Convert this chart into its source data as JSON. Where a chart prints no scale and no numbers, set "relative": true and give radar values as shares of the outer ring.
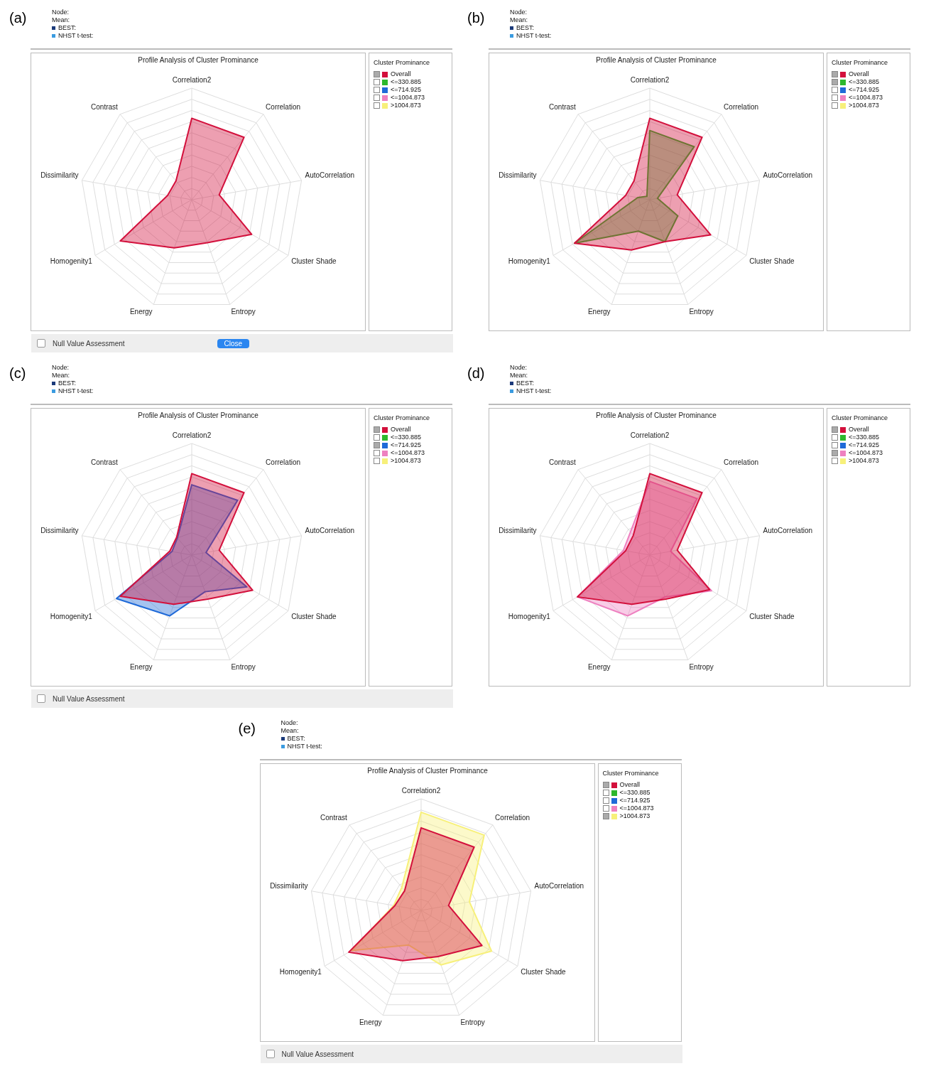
{
  "chart_data": [
    {
      "type": "radar",
      "title": "Profile Analysis of Cluster Prominance",
      "legend_title": "Cluster Prominance",
      "relative": true,
      "grid": true,
      "legend": "top right",
      "marker": "none",
      "annotations": [
        "(a)",
        "Node:",
        "Mean:",
        "BEST:",
        "NHST t-test:",
        "<=330.885",
        "<=714.925",
        "<=1004.873",
        ">1004.873",
        "Null Value Assessment",
        "Close"
      ],
      "categories": [
        "Correlation2",
        "Correlation",
        "AutoCorrelation",
        "Cluster Shade",
        "Entropy",
        "Energy",
        "Homogenity1",
        "Dissimilarity",
        "Contrast"
      ],
      "series": [
        {
          "name": "Overall",
          "color": "#d3103c",
          "values": [
            0.73,
            0.73,
            0.25,
            0.62,
            0.41,
            0.46,
            0.74,
            0.22,
            0.22
          ]
        }
      ]
    },
    {
      "type": "radar",
      "title": "Profile Analysis of Cluster Prominance",
      "legend_title": "Cluster Prominance",
      "relative": true,
      "grid": true,
      "legend": "top right",
      "marker": "none",
      "annotations": [
        "(b)",
        "Node:",
        "Mean:",
        "BEST:",
        "NHST t-test:",
        "<=714.925",
        "<=1004.873",
        ">1004.873"
      ],
      "categories": [
        "Correlation2",
        "Correlation",
        "AutoCorrelation",
        "Cluster Shade",
        "Entropy",
        "Energy",
        "Homogenity1",
        "Dissimilarity",
        "Contrast"
      ],
      "series": [
        {
          "name": "Overall",
          "color": "#d3103c",
          "values": [
            0.73,
            0.73,
            0.25,
            0.63,
            0.4,
            0.48,
            0.78,
            0.22,
            0.22
          ]
        },
        {
          "name": "<=330.885",
          "color": "#2db82d",
          "values": [
            0.62,
            0.62,
            0.07,
            0.29,
            0.4,
            0.3,
            0.78,
            0.11,
            0.04
          ]
        }
      ]
    },
    {
      "type": "radar",
      "title": "Profile Analysis of Cluster Prominance",
      "legend_title": "Cluster Prominance",
      "relative": true,
      "grid": true,
      "legend": "top right",
      "marker": "none",
      "annotations": [
        "(c)",
        "Node:",
        "Mean:",
        "BEST:",
        "NHST t-test:",
        "<=330.885",
        "<=1004.873",
        ">1004.873",
        "Null Value Assessment"
      ],
      "categories": [
        "Correlation2",
        "Correlation",
        "AutoCorrelation",
        "Cluster Shade",
        "Entropy",
        "Energy",
        "Homogenity1",
        "Dissimilarity",
        "Contrast"
      ],
      "series": [
        {
          "name": "Overall",
          "color": "#d3103c",
          "values": [
            0.73,
            0.73,
            0.25,
            0.63,
            0.42,
            0.47,
            0.74,
            0.2,
            0.21
          ]
        },
        {
          "name": "<=714.925",
          "color": "#1f6ad8",
          "values": [
            0.63,
            0.64,
            0.13,
            0.57,
            0.35,
            0.58,
            0.78,
            0.18,
            0.2
          ]
        }
      ]
    },
    {
      "type": "radar",
      "title": "Profile Analysis of Cluster Prominance",
      "legend_title": "Cluster Prominance",
      "relative": true,
      "grid": true,
      "legend": "top right",
      "marker": "none",
      "annotations": [
        "(d)",
        "Node:",
        "Mean:",
        "BEST:",
        "NHST t-test:",
        "<=330.885",
        "<=714.925",
        ">1004.873"
      ],
      "categories": [
        "Correlation2",
        "Correlation",
        "AutoCorrelation",
        "Cluster Shade",
        "Entropy",
        "Energy",
        "Homogenity1",
        "Dissimilarity",
        "Contrast"
      ],
      "series": [
        {
          "name": "Overall",
          "color": "#d3103c",
          "values": [
            0.73,
            0.73,
            0.25,
            0.62,
            0.42,
            0.47,
            0.75,
            0.22,
            0.23
          ]
        },
        {
          "name": "<=1004.873",
          "color": "#ee80c0",
          "values": [
            0.66,
            0.66,
            0.19,
            0.64,
            0.4,
            0.58,
            0.75,
            0.24,
            0.27
          ]
        }
      ]
    },
    {
      "type": "radar",
      "title": "Profile Analysis of Cluster Prominance",
      "legend_title": "Cluster Prominance",
      "relative": true,
      "grid": true,
      "legend": "top right",
      "marker": "none",
      "annotations": [
        "(e)",
        "Node:",
        "Mean:",
        "BEST:",
        "NHST t-test:",
        "<=330.885",
        "<=714.925",
        "<=1004.873",
        "Null Value Assessment"
      ],
      "categories": [
        "Correlation2",
        "Correlation",
        "AutoCorrelation",
        "Cluster Shade",
        "Entropy",
        "Energy",
        "Homogenity1",
        "Dissimilarity",
        "Contrast"
      ],
      "series": [
        {
          "name": "Overall",
          "color": "#d3103c",
          "values": [
            0.74,
            0.74,
            0.25,
            0.63,
            0.44,
            0.48,
            0.75,
            0.24,
            0.23
          ]
        },
        {
          "name": ">1004.873",
          "color": "#f7f07a",
          "values": [
            0.88,
            0.88,
            0.44,
            0.73,
            0.52,
            0.33,
            0.72,
            0.25,
            0.27
          ]
        }
      ]
    }
  ]
}
